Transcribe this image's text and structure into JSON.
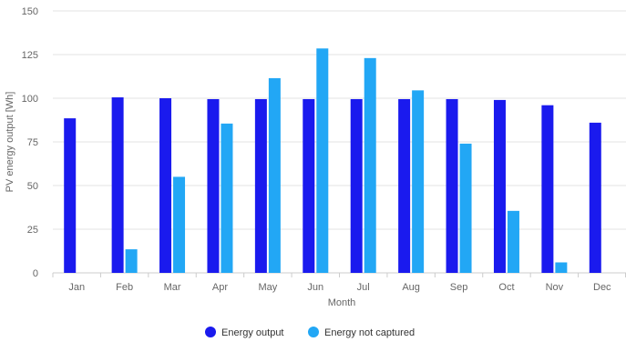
{
  "chart_data": {
    "type": "bar",
    "xlabel": "Month",
    "ylabel": "PV energy output [Wh]",
    "ylim": [
      0,
      150
    ],
    "yticks": [
      0,
      25,
      50,
      75,
      100,
      125,
      150
    ],
    "grid": true,
    "legend_position": "bottom",
    "categories": [
      "Jan",
      "Feb",
      "Mar",
      "Apr",
      "May",
      "Jun",
      "Jul",
      "Aug",
      "Sep",
      "Oct",
      "Nov",
      "Dec"
    ],
    "series": [
      {
        "name": "Energy output",
        "color": "#1a1aee",
        "values": [
          88.5,
          100.5,
          100,
          99.5,
          99.5,
          99.5,
          99.5,
          99.5,
          99.5,
          99,
          96,
          86
        ]
      },
      {
        "name": "Energy not captured",
        "color": "#22a7f5",
        "values": [
          0,
          13.5,
          55,
          85.5,
          111.5,
          128.5,
          123,
          104.5,
          74,
          35.5,
          6,
          0
        ]
      }
    ]
  }
}
